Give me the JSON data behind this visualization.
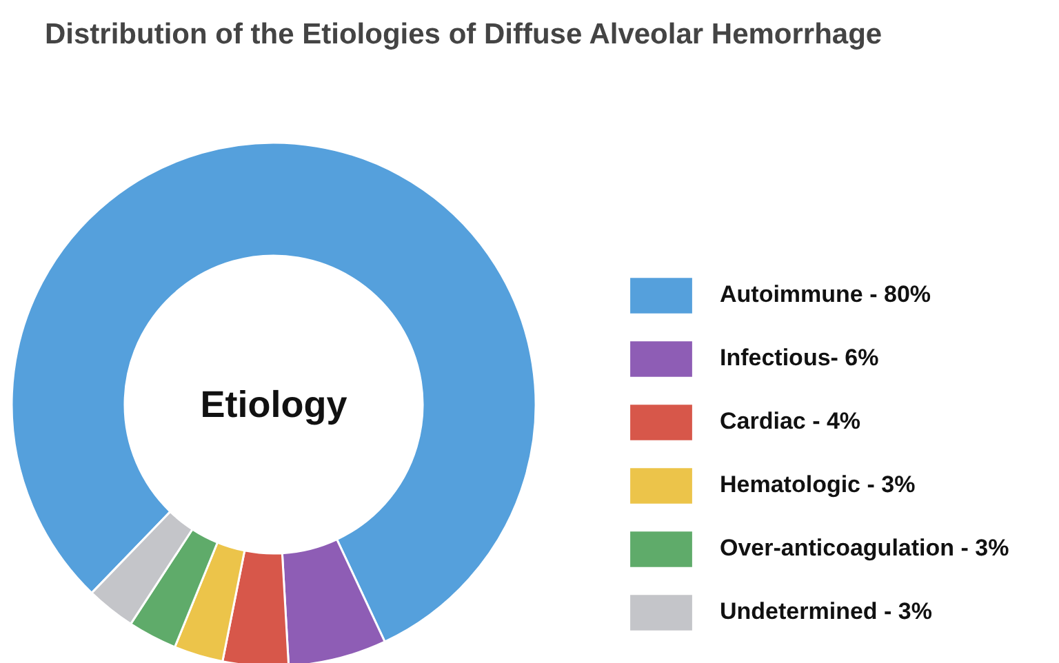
{
  "chart_data": {
    "type": "donut",
    "title": "Distribution of the Etiologies of Diffuse Alveolar Hemorrhage",
    "categories": [
      "Autoimmune - 80%",
      "Infectious- 6%",
      "Cardiac - 4%",
      "Hematologic - 3%",
      "Over-anticoagulation - 3%",
      "Undetermined - 3%"
    ],
    "values": [
      80,
      6,
      4,
      3,
      3,
      3
    ],
    "colors": [
      "#55a0dc",
      "#8e5db5",
      "#d7574a",
      "#ecc44a",
      "#5fab6a",
      "#c4c5c9"
    ],
    "annotations": [
      "Etiology"
    ],
    "legend": "right"
  }
}
